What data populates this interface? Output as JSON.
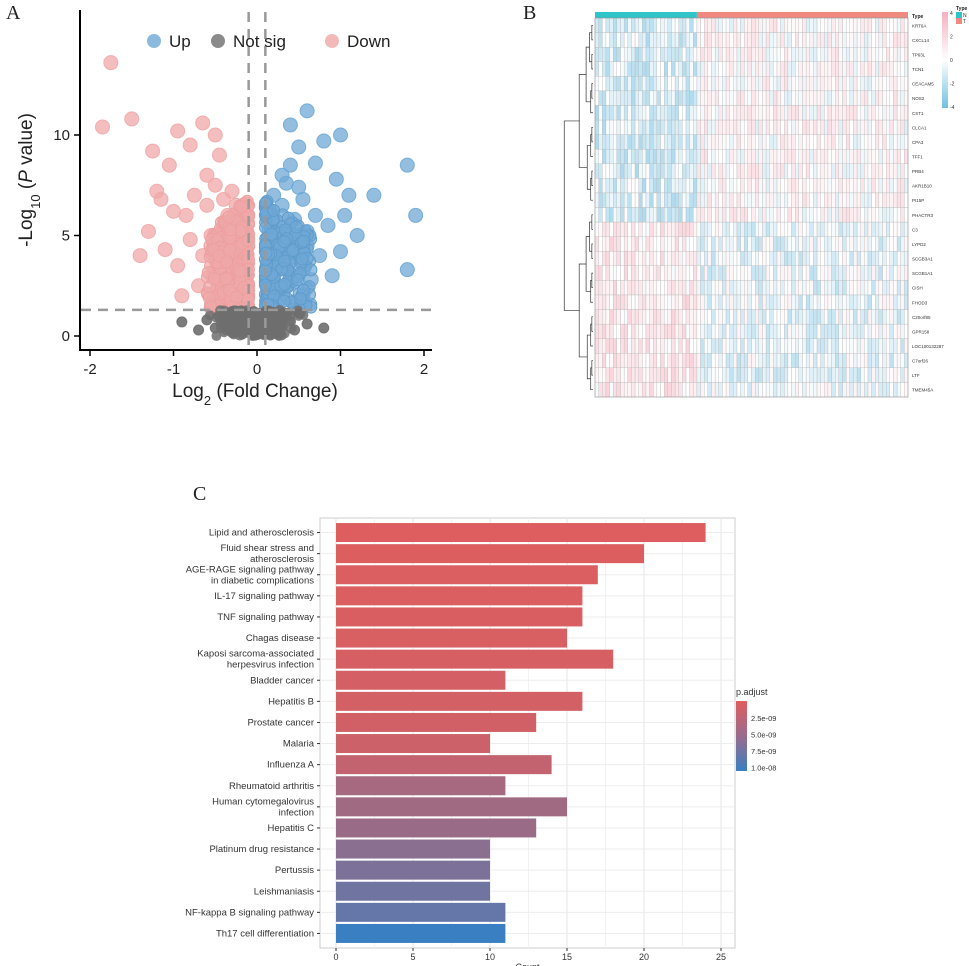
{
  "panels": {
    "a": "A",
    "b": "B",
    "c": "C"
  },
  "chart_data": [
    {
      "type": "scatter",
      "panel": "A",
      "xlabel": "Log2 (Fold Change)",
      "xlabel_main": "Log",
      "xlabel_sub": "2",
      "xlabel_rest": " (Fold Change)",
      "ylabel_pre": "-Log",
      "ylabel_sub": "10",
      "ylabel_mid": " (",
      "ylabel_it": "P",
      "ylabel_post": " value)",
      "xlim": [
        -2,
        2
      ],
      "ylim": [
        0,
        14
      ],
      "xticks": [
        "-2",
        "-1",
        "0",
        "1",
        "2"
      ],
      "yticks": [
        "0",
        "5",
        "10"
      ],
      "thresholds": {
        "x": [
          -0.1,
          0.1
        ],
        "y": 1.3
      },
      "legend": [
        {
          "name": "Up",
          "color": "#6fa8d6"
        },
        {
          "name": "Not sig",
          "color": "#6e6e6e"
        },
        {
          "name": "Down",
          "color": "#f0a8a8"
        }
      ],
      "series": [
        {
          "name": "Down",
          "points": [
            [
              -1.75,
              13.6
            ],
            [
              -1.85,
              10.4
            ],
            [
              -1.5,
              10.8
            ],
            [
              -1.25,
              9.2
            ],
            [
              -1.2,
              7.2
            ],
            [
              -1.05,
              8.5
            ],
            [
              -0.95,
              10.2
            ],
            [
              -0.8,
              9.5
            ],
            [
              -0.65,
              10.6
            ],
            [
              -0.5,
              10.0
            ],
            [
              -0.45,
              9.0
            ],
            [
              -1.3,
              5.2
            ],
            [
              -1.1,
              4.3
            ],
            [
              -1.4,
              4.0
            ],
            [
              -0.95,
              3.5
            ],
            [
              -0.9,
              2.0
            ],
            [
              -0.7,
              2.5
            ],
            [
              -0.6,
              6.5
            ],
            [
              -0.5,
              7.5
            ],
            [
              -0.35,
              6.0
            ],
            [
              -0.3,
              4.5
            ],
            [
              -0.25,
              3.0
            ],
            [
              -0.4,
              2.2
            ],
            [
              -0.8,
              4.8
            ],
            [
              -1.0,
              6.2
            ],
            [
              -1.15,
              6.8
            ],
            [
              -0.55,
              5.0
            ],
            [
              -0.2,
              2.0
            ],
            [
              -0.3,
              7.2
            ],
            [
              -0.45,
              3.8
            ],
            [
              -0.6,
              8.0
            ],
            [
              -0.75,
              7.0
            ],
            [
              -0.4,
              6.8
            ],
            [
              -0.2,
              5.5
            ],
            [
              -0.3,
              1.6
            ],
            [
              -0.5,
              1.8
            ],
            [
              -0.65,
              4.0
            ],
            [
              -0.85,
              6.0
            ],
            [
              -0.25,
              6.5
            ],
            [
              -0.15,
              4.0
            ]
          ]
        },
        {
          "name": "Up",
          "points": [
            [
              0.6,
              11.2
            ],
            [
              0.4,
              10.5
            ],
            [
              0.8,
              9.7
            ],
            [
              1.0,
              10.0
            ],
            [
              0.4,
              8.5
            ],
            [
              0.7,
              8.6
            ],
            [
              1.1,
              7.0
            ],
            [
              1.4,
              7.0
            ],
            [
              1.8,
              8.5
            ],
            [
              1.9,
              6.0
            ],
            [
              1.8,
              3.3
            ],
            [
              1.2,
              5.0
            ],
            [
              1.0,
              4.2
            ],
            [
              0.9,
              3.0
            ],
            [
              0.6,
              4.5
            ],
            [
              0.3,
              6.5
            ],
            [
              0.2,
              5.2
            ],
            [
              0.25,
              3.5
            ],
            [
              0.15,
              2.0
            ],
            [
              0.5,
              7.4
            ],
            [
              0.35,
              2.5
            ],
            [
              0.55,
              1.8
            ],
            [
              0.45,
              5.8
            ],
            [
              0.7,
              6.0
            ],
            [
              0.85,
              5.5
            ],
            [
              0.3,
              4.2
            ],
            [
              0.2,
              7.0
            ],
            [
              0.65,
              2.8
            ],
            [
              0.3,
              8.0
            ],
            [
              0.5,
              9.4
            ],
            [
              0.15,
              6.0
            ],
            [
              0.4,
              3.0
            ],
            [
              0.25,
              4.8
            ],
            [
              0.55,
              6.8
            ],
            [
              0.75,
              4.0
            ],
            [
              1.05,
              6.0
            ],
            [
              0.2,
              2.8
            ],
            [
              0.35,
              7.6
            ],
            [
              0.6,
              5.2
            ],
            [
              0.95,
              7.8
            ]
          ]
        },
        {
          "name": "Not sig",
          "points": [
            [
              -0.9,
              0.7
            ],
            [
              -0.5,
              0.4
            ],
            [
              0,
              0.2
            ],
            [
              0.3,
              0.5
            ],
            [
              0.6,
              0.6
            ],
            [
              -0.2,
              0.9
            ],
            [
              0.1,
              1.0
            ],
            [
              -0.7,
              0.3
            ],
            [
              0.8,
              0.4
            ],
            [
              -0.4,
              1.1
            ],
            [
              0.05,
              0.6
            ],
            [
              -0.1,
              0.4
            ],
            [
              0.2,
              0.8
            ],
            [
              -0.3,
              0.2
            ],
            [
              0.45,
              0.3
            ],
            [
              -0.05,
              1.2
            ],
            [
              0.1,
              0.1
            ],
            [
              -0.6,
              0.8
            ]
          ]
        }
      ]
    },
    {
      "type": "heatmap",
      "panel": "B",
      "genes": [
        "KRT6A",
        "CXCL14",
        "TP63L",
        "TCN1",
        "CEACAM5",
        "NOS2",
        "CST1",
        "CLCA1",
        "CPA3",
        "TFF1",
        "PRB4",
        "AKR1B10",
        "PI15P",
        "PHACTR3",
        "C3",
        "LYPD2",
        "SCGB3A1",
        "SCGB1A1",
        "CISH",
        "FHOD3",
        "C20orf85",
        "GPR158",
        "LOC100132287",
        "C7orf26",
        "LTF",
        "TMEM45A"
      ],
      "groups": [
        {
          "name": "N",
          "count": 28,
          "color": "#2ec4c8"
        },
        {
          "name": "T",
          "count": 58,
          "color": "#f08a80"
        }
      ],
      "annotation_title": "Type",
      "legend_title": "Type",
      "scale_ticks": [
        "4",
        "2",
        "0",
        "-2",
        "-4"
      ],
      "scale_range": [
        -4,
        4
      ]
    },
    {
      "type": "bar",
      "panel": "C",
      "orientation": "horizontal",
      "categories": [
        "Lipid and atherosclerosis",
        "Fluid shear stress and atherosclerosis",
        "AGE-RAGE signaling pathway in diabetic complications",
        "IL-17 signaling pathway",
        "TNF signaling pathway",
        "Chagas disease",
        "Kaposi sarcoma-associated herpesvirus infection",
        "Bladder cancer",
        "Hepatitis B",
        "Prostate cancer",
        "Malaria",
        "Influenza A",
        "Rheumatoid arthritis",
        "Human cytomegalovirus infection",
        "Hepatitis C",
        "Platinum drug resistance",
        "Pertussis",
        "Leishmaniasis",
        "NF-kappa B signaling pathway",
        "Th17 cell differentiation"
      ],
      "category_lines": [
        [
          "Lipid and atherosclerosis"
        ],
        [
          "Fluid shear stress and",
          "atherosclerosis"
        ],
        [
          "AGE-RAGE signaling pathway",
          "in diabetic complications"
        ],
        [
          "IL-17 signaling pathway"
        ],
        [
          "TNF signaling pathway"
        ],
        [
          "Chagas disease"
        ],
        [
          "Kaposi sarcoma-associated",
          "herpesvirus infection"
        ],
        [
          "Bladder cancer"
        ],
        [
          "Hepatitis B"
        ],
        [
          "Prostate cancer"
        ],
        [
          "Malaria"
        ],
        [
          "Influenza A"
        ],
        [
          "Rheumatoid arthritis"
        ],
        [
          "Human cytomegalovirus",
          "infection"
        ],
        [
          "Hepatitis C"
        ],
        [
          "Platinum drug resistance"
        ],
        [
          "Pertussis"
        ],
        [
          "Leishmaniasis"
        ],
        [
          "NF-kappa B signaling pathway"
        ],
        [
          "Th17 cell differentiation"
        ]
      ],
      "values": [
        24,
        20,
        17,
        16,
        16,
        15,
        18,
        11,
        16,
        13,
        10,
        14,
        11,
        15,
        13,
        10,
        10,
        10,
        11,
        11
      ],
      "p_adjust": [
        1e-10,
        2e-10,
        3e-10,
        3e-10,
        4e-10,
        5e-10,
        6e-10,
        7e-10,
        8e-10,
        9e-10,
        1.2e-09,
        1.8e-09,
        3.5e-09,
        3.8e-09,
        4.2e-09,
        5.2e-09,
        6e-09,
        6.8e-09,
        7.5e-09,
        1e-08
      ],
      "xlabel": "Count",
      "xlim": [
        0,
        25
      ],
      "xticks": [
        "0",
        "5",
        "10",
        "15",
        "20",
        "25"
      ],
      "legend_title": "p.adjust",
      "legend_ticks": [
        "2.5e-09",
        "5.0e-09",
        "7.5e-09",
        "1.0e-08"
      ],
      "color_low": "#e05d5d",
      "color_high": "#3a7fc1"
    }
  ]
}
